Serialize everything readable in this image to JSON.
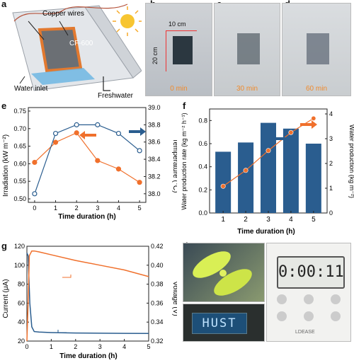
{
  "panels": {
    "a": "a",
    "b": "b",
    "c": "c",
    "d": "d",
    "e": "e",
    "f": "f",
    "g": "g",
    "h": "h"
  },
  "schematic": {
    "copper_label": "Copper wires",
    "cf_label": "CF-600",
    "inlet_label": "Water inlet",
    "fresh_label": "Freshwater"
  },
  "photos": {
    "width_label": "10 cm",
    "height_label": "20 cm",
    "t0": "0 min",
    "t30": "30 min",
    "t60": "60 min"
  },
  "lcd": {
    "timer": "0:00:11",
    "display": "HUST",
    "brand": "LDEASE"
  },
  "colors": {
    "blue": "#2a5d8f",
    "orange": "#f0702c",
    "bar": "#2a5d8f"
  },
  "chart_data": [
    {
      "id": "e",
      "type": "line",
      "xlabel": "Time duration (h)",
      "ylabel": "Irradiation (kW m⁻²)",
      "y2label": "Temperature (°C)",
      "x": [
        0,
        1,
        2,
        3,
        4,
        5
      ],
      "xlim": [
        -0.3,
        5.3
      ],
      "ylim": [
        0.49,
        0.76
      ],
      "y2lim": [
        37.9,
        39.0
      ],
      "xticks": [
        "0",
        "1",
        "2",
        "3",
        "4",
        "5"
      ],
      "yticks": [
        "0.50",
        "0.55",
        "0.60",
        "0.65",
        "0.70",
        "0.75"
      ],
      "y2ticks": [
        "38.0",
        "38.2",
        "38.4",
        "38.6",
        "38.8",
        "39.0"
      ],
      "series": [
        {
          "axis": "left",
          "color": "#f0702c",
          "values": [
            0.604,
            0.661,
            0.688,
            0.609,
            0.585,
            0.547
          ]
        },
        {
          "axis": "right",
          "color": "#2a5d8f",
          "values": [
            38.0,
            38.7,
            38.8,
            38.8,
            38.7,
            38.5
          ]
        }
      ]
    },
    {
      "id": "f",
      "type": "bar",
      "xlabel": "Time duration (h)",
      "ylabel": "Water production rate (kg m⁻² h⁻¹)",
      "y2label": "Water production (kg m⁻²)",
      "categories": [
        "1",
        "2",
        "3",
        "4",
        "5"
      ],
      "xlim": [
        0.4,
        5.6
      ],
      "ylim": [
        0,
        0.9
      ],
      "y2lim": [
        0,
        4.2
      ],
      "yticks": [
        "0.0",
        "0.2",
        "0.4",
        "0.6",
        "0.8"
      ],
      "y2ticks": [
        "0",
        "1",
        "2",
        "3",
        "4"
      ],
      "bar_values": [
        0.53,
        0.61,
        0.78,
        0.73,
        0.6
      ],
      "line_values": [
        1.08,
        1.72,
        2.52,
        3.25,
        3.82
      ],
      "line_color": "#f0702c",
      "bar_color": "#2a5d8f"
    },
    {
      "id": "g",
      "type": "line",
      "xlabel": "Time duration (h)",
      "ylabel": "Current (μA)",
      "y2label": "Voltage (V)",
      "xlim": [
        0,
        5
      ],
      "ylim": [
        20,
        120
      ],
      "y2lim": [
        0.32,
        0.42
      ],
      "xticks": [
        "0",
        "1",
        "2",
        "3",
        "4",
        "5"
      ],
      "yticks": [
        "20",
        "40",
        "60",
        "80",
        "100",
        "120"
      ],
      "y2ticks": [
        "0.32",
        "0.34",
        "0.36",
        "0.38",
        "0.40",
        "0.42"
      ],
      "current": {
        "x": [
          0,
          0.05,
          0.12,
          0.2,
          0.3,
          0.5,
          1,
          2,
          3,
          4,
          5
        ],
        "values": [
          113,
          110,
          60,
          35,
          30,
          29.5,
          29,
          28.5,
          28.3,
          28.1,
          28
        ],
        "color": "#2a5d8f"
      },
      "voltage": {
        "x": [
          0,
          0.05,
          0.1,
          0.2,
          0.3,
          0.5,
          1,
          2,
          3,
          4,
          5
        ],
        "values": [
          0.32,
          0.36,
          0.41,
          0.415,
          0.415,
          0.414,
          0.411,
          0.405,
          0.4,
          0.395,
          0.388
        ],
        "color": "#f0702c"
      }
    }
  ]
}
